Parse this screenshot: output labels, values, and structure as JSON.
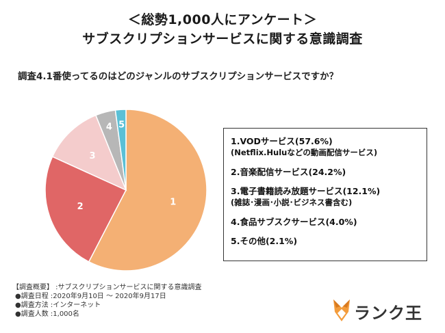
{
  "title_line1": "＜総勢1,000人にアンケート＞",
  "title_line2": "サブスクリプションサービスに関する意識調査",
  "question": "調査4.1番使ってるのはどのジャンルのサブスクリプションサービスですか？",
  "chart_data": {
    "type": "pie",
    "slices": [
      {
        "label": "1",
        "value": 57.6,
        "color": "#f4b074",
        "label_color": "#ffffff"
      },
      {
        "label": "2",
        "value": 24.2,
        "color": "#e06666",
        "label_color": "#ffffff"
      },
      {
        "label": "3",
        "value": 12.1,
        "color": "#f4cccc",
        "label_color": "#ffffff"
      },
      {
        "label": "4",
        "value": 4.0,
        "color": "#b7b7b7",
        "label_color": "#ffffff"
      },
      {
        "label": "5",
        "value": 2.1,
        "color": "#5bc0d6",
        "label_color": "#ffffff"
      }
    ],
    "legend": [
      {
        "main": "1.VODサービス(57.6%)",
        "sub": "(Netflix.Huluなどの動画配信サービス)"
      },
      {
        "main": "2.音楽配信サービス(24.2%)",
        "sub": ""
      },
      {
        "main": "3.電子書籍読み放題サービス(12.1%)",
        "sub": "(雑誌･漫画･小説･ビジネス書含む)"
      },
      {
        "main": "4.食品サブスクサービス(4.0%)",
        "sub": ""
      },
      {
        "main": "5.その他(2.1%)",
        "sub": ""
      }
    ]
  },
  "survey": {
    "header": "【調査概要】 :サブスクリプションサービスに関する意識調査",
    "rows": [
      "●調査日程 :2020年9月10日 〜 2020年9月17日",
      "●調査方法 :インターネット",
      "●調査人数 :1,000名"
    ]
  },
  "logo": {
    "text": "ランク王",
    "icon": "fox-logo-icon",
    "color": "#f39c3c"
  }
}
